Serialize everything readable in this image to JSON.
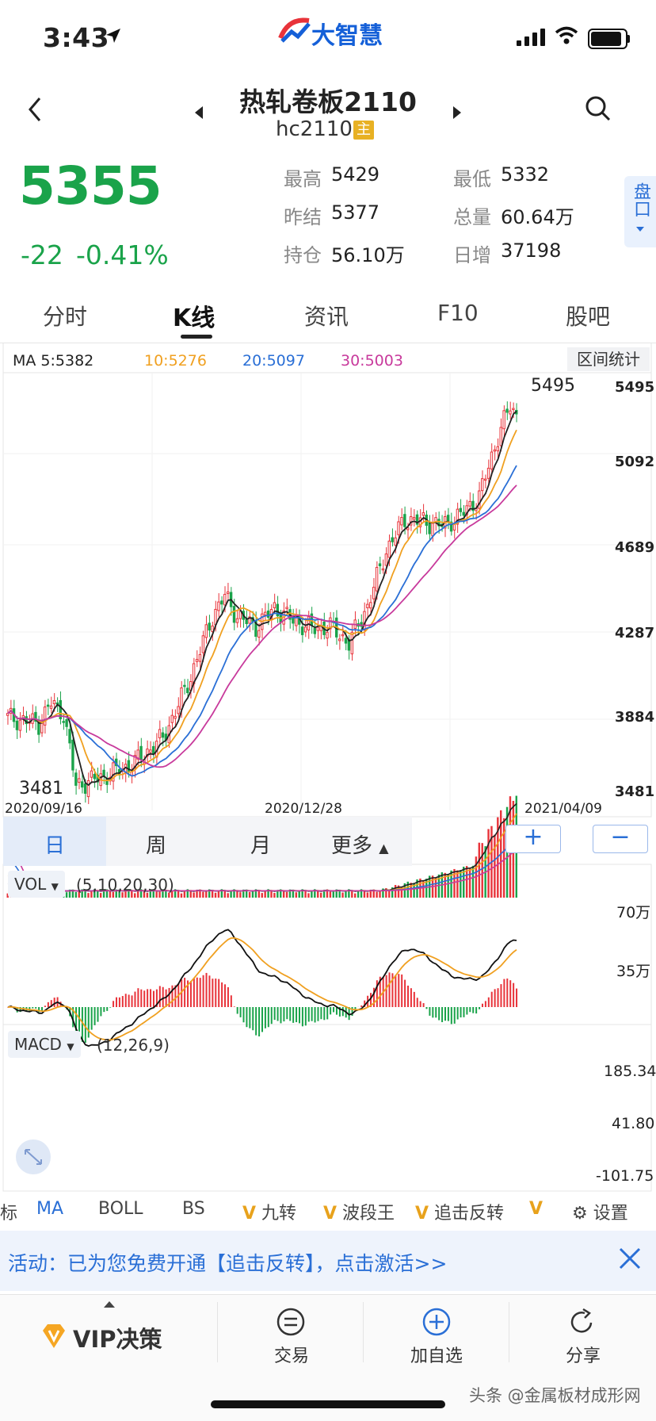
{
  "status_bar": {
    "time": "3:43",
    "app_brand": "大智慧"
  },
  "header": {
    "title": "热轧卷板2110",
    "code": "hc2110",
    "main_badge": "主"
  },
  "quote": {
    "price": "5355",
    "change": "-22",
    "change_pct": "-0.41%",
    "stats": [
      {
        "label": "最高",
        "value": "5429"
      },
      {
        "label": "最低",
        "value": "5332"
      },
      {
        "label": "昨结",
        "value": "5377"
      },
      {
        "label": "总量",
        "value": "60.64万"
      },
      {
        "label": "持仓",
        "value": "56.10万"
      },
      {
        "label": "日增",
        "value": "37198"
      }
    ],
    "pankou_label": "盘口"
  },
  "tabs": [
    "分时",
    "K线",
    "资讯",
    "F10",
    "股吧"
  ],
  "active_tab": "K线",
  "kline": {
    "ma_legend": [
      {
        "text": "MA 5:5382",
        "color": "#222222"
      },
      {
        "text": "10:5276",
        "color": "#f0a020"
      },
      {
        "text": "20:5097",
        "color": "#2a6fd6"
      },
      {
        "text": "30:5003",
        "color": "#c83a9c"
      }
    ],
    "range_stat_button": "区间统计",
    "y_ticks": [
      "5495",
      "5092",
      "4689",
      "4287",
      "3884",
      "3481"
    ],
    "x_ticks": [
      "2020/09/16",
      "2020/12/28",
      "2021/04/09"
    ],
    "high_marker": "5495",
    "low_marker": "3481"
  },
  "periods": [
    "日",
    "周",
    "月",
    "更多"
  ],
  "zoom": {
    "in": "+",
    "out": "−"
  },
  "vol": {
    "label": "VOL",
    "params": "(5,10,20,30)",
    "y_ticks": [
      "70万",
      "35万"
    ]
  },
  "macd": {
    "label": "MACD",
    "params": "(12,26,9)",
    "y_ticks": [
      "185.34",
      "41.80",
      "-101.75"
    ]
  },
  "indicator_tabs": [
    "标",
    "MA",
    "BOLL",
    "BS",
    "九转",
    "波段王",
    "追击反转",
    "V",
    "设置"
  ],
  "banner": {
    "text": "活动：已为您免费开通【追击反转】，点击激活>>"
  },
  "bottom_nav": {
    "vip": "VIP决策",
    "trade": "交易",
    "add": "加自选",
    "share": "分享"
  },
  "watermark": "头条 @金属板材成形网",
  "colors": {
    "up": "#e8333a",
    "down": "#1aa34a",
    "accent": "#2a6fd6",
    "ma5": "#222222",
    "ma10": "#f0a020",
    "ma20": "#2a6fd6",
    "ma30": "#c83a9c"
  }
}
